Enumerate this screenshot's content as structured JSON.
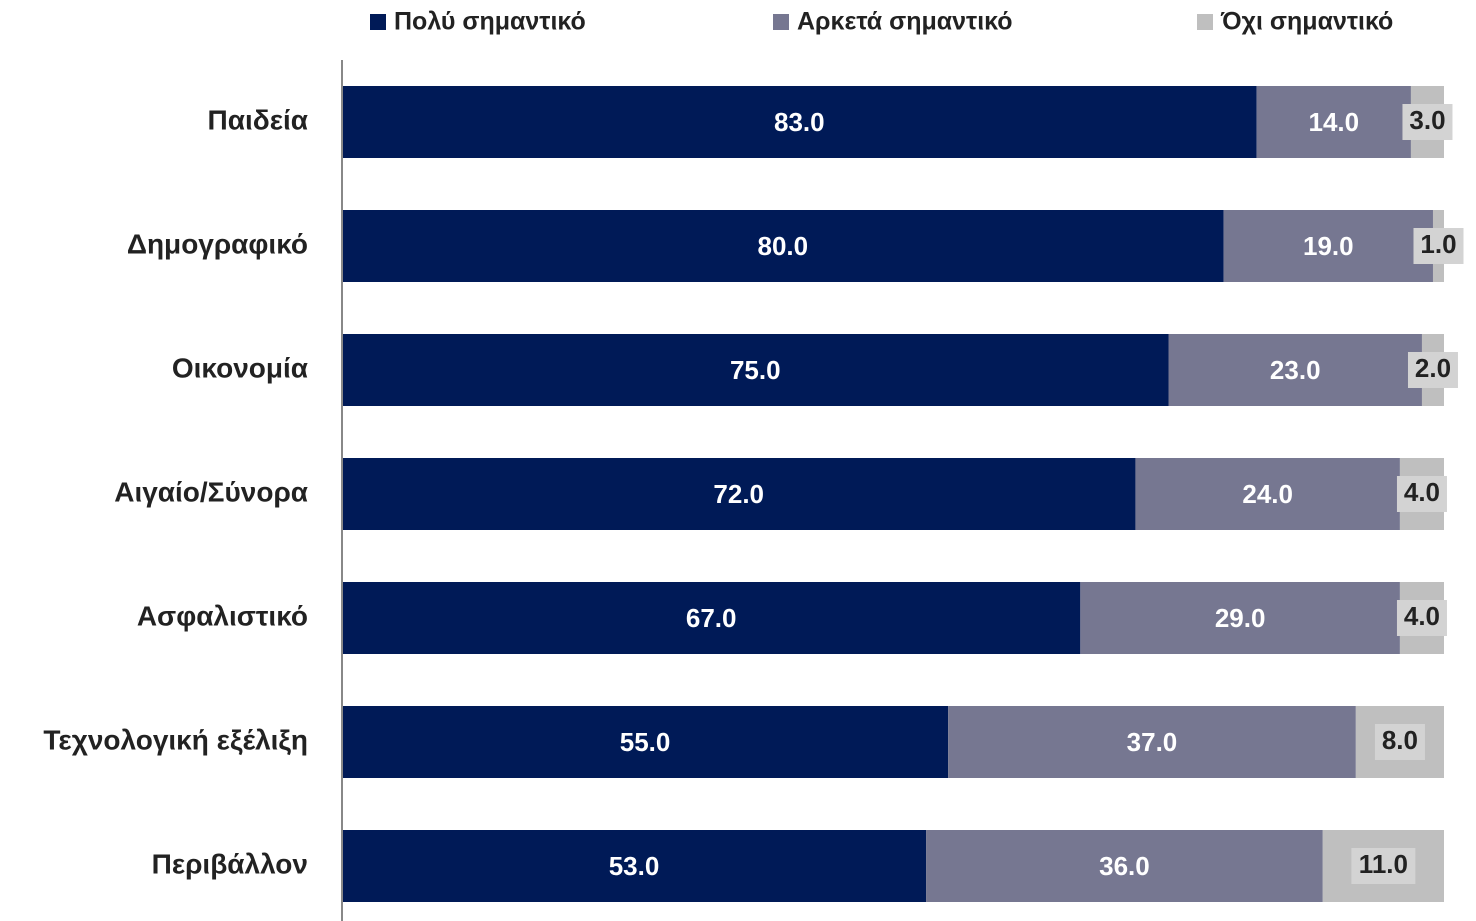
{
  "chart_data": {
    "type": "stacked_barh",
    "categories": [
      "Παιδεία",
      "Δημογραφικό",
      "Οικονομία",
      "Αιγαίο/Σύνορα",
      "Ασφαλιστικό",
      "Τεχνολογική εξέλιξη",
      "Περιβάλλον"
    ],
    "xlim": [
      0,
      100
    ],
    "legend": "top",
    "series": [
      {
        "name": "Πολύ σημαντικό",
        "color": "#001a57",
        "values": [
          83,
          80,
          75,
          72,
          67,
          55,
          53
        ],
        "value_labels": [
          "83.0",
          "80.0",
          "75.0",
          "72.0",
          "67.0",
          "55.0",
          "53.0"
        ]
      },
      {
        "name": "Αρκετά σημαντικό",
        "color": "#767791",
        "values": [
          14,
          19,
          23,
          24,
          29,
          37,
          36
        ],
        "value_labels": [
          "14.0",
          "19.0",
          "23.0",
          "24.0",
          "29.0",
          "37.0",
          "36.0"
        ]
      },
      {
        "name": "Όχι σημαντικό",
        "color": "#bfbfbf",
        "values": [
          3,
          1,
          2,
          4,
          4,
          8,
          11
        ],
        "value_labels": [
          "3.0",
          "1.0",
          "2.0",
          "4.0",
          "4.0",
          "8.0",
          "11.0"
        ]
      }
    ]
  }
}
